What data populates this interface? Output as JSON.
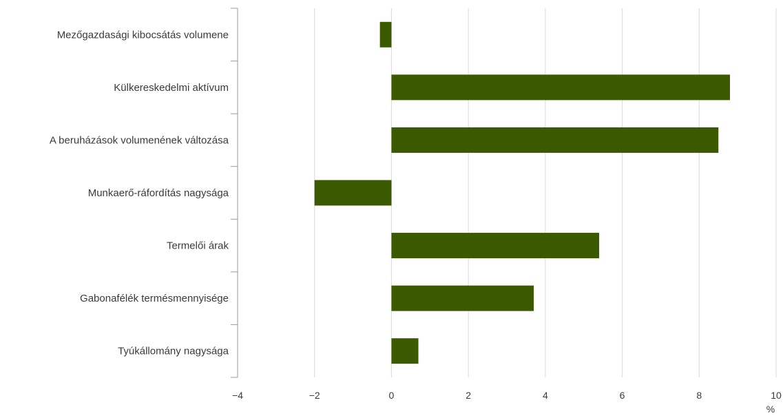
{
  "chart_data": {
    "type": "bar",
    "orientation": "horizontal",
    "title": "",
    "xlabel": "",
    "ylabel": "",
    "unit": "%",
    "categories": [
      "Mezőgazdasági kibocsátás volumene",
      "Külkereskedelmi aktívum",
      "A beruházások volumenének változása",
      "Munkaerő-ráfordítás nagysága",
      "Termelői árak",
      "Gabonafélék termésmennyisége",
      "Tyúkállomány nagysága"
    ],
    "values": [
      -0.3,
      8.8,
      8.5,
      -2.0,
      5.4,
      3.7,
      0.7
    ],
    "xlim": [
      -4,
      10
    ],
    "xticks": [
      -4,
      -2,
      0,
      2,
      4,
      6,
      8,
      10
    ],
    "xtick_labels": [
      "−4",
      "−2",
      "0",
      "2",
      "4",
      "6",
      "8",
      "10"
    ],
    "grid": "vertical",
    "legend": "none",
    "bar_color": "#3b5a00",
    "grid_color": "#d9d9d9",
    "axis_color": "#9a9a9a",
    "text_color": "#3a3a3a"
  }
}
